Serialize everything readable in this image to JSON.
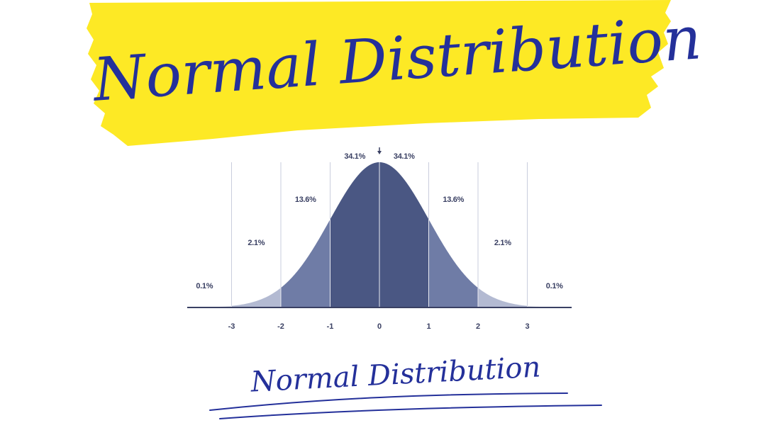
{
  "header": {
    "title": "Normal Distribution"
  },
  "footer": {
    "title": "Normal Distribution"
  },
  "colors": {
    "banner": "#fde925",
    "ink": "#24309a",
    "band_inner": "#4a5783",
    "band_mid": "#6f7ca6",
    "band_outer": "#b3bad2",
    "band_tail": "#dfe2ec",
    "axis": "#3a4063"
  },
  "chart_data": {
    "type": "area",
    "title": "Normal Distribution",
    "x_ticks": [
      "-3",
      "-2",
      "-1",
      "0",
      "1",
      "2",
      "3"
    ],
    "xlim": [
      -3.9,
      3.9
    ],
    "mean_marker": 0,
    "bands": [
      {
        "from": -3.9,
        "to": -3,
        "percent": "0.1%"
      },
      {
        "from": -3,
        "to": -2,
        "percent": "2.1%"
      },
      {
        "from": -2,
        "to": -1,
        "percent": "13.6%"
      },
      {
        "from": -1,
        "to": 0,
        "percent": "34.1%"
      },
      {
        "from": 0,
        "to": 1,
        "percent": "34.1%"
      },
      {
        "from": 1,
        "to": 2,
        "percent": "13.6%"
      },
      {
        "from": 2,
        "to": 3,
        "percent": "2.1%"
      },
      {
        "from": 3,
        "to": 3.9,
        "percent": "0.1%"
      }
    ],
    "grid": true
  }
}
